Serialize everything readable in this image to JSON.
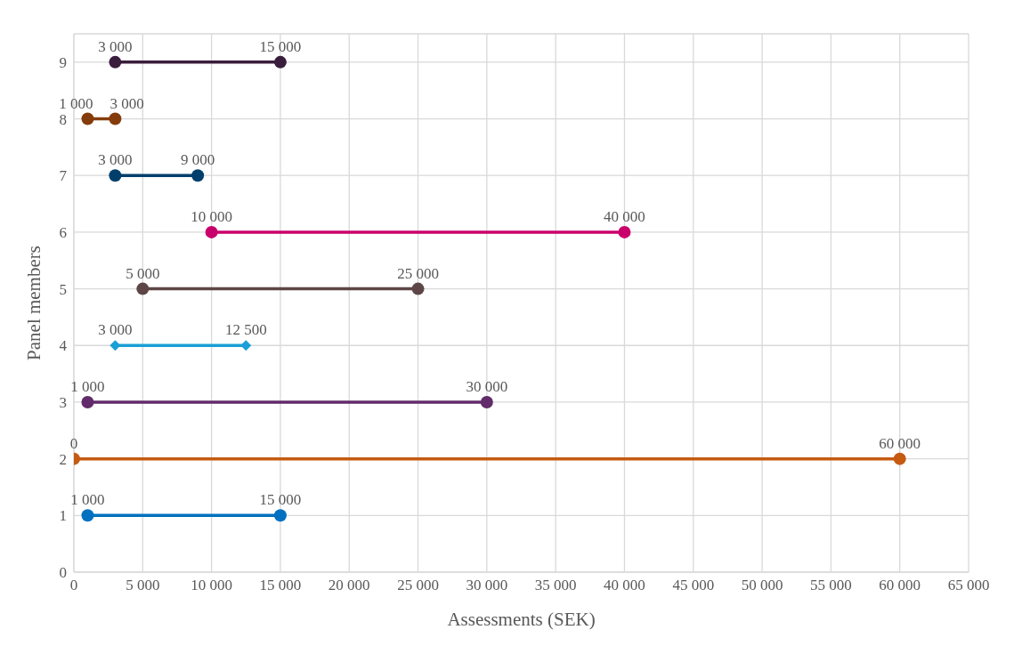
{
  "chart_data": {
    "type": "line",
    "orientation": "horizontal",
    "xlabel": "Assessments (SEK)",
    "ylabel": "Panel members",
    "xlim": [
      0,
      65000
    ],
    "xticks": [
      0,
      {
        "value": 5000,
        "label": "5 000"
      },
      {
        "value": 10000,
        "label": "10 000"
      },
      {
        "value": 15000,
        "label": "15 000"
      },
      {
        "value": 20000,
        "label": "20 000"
      },
      {
        "value": 25000,
        "label": "25 000"
      },
      {
        "value": 30000,
        "label": "30 000"
      },
      {
        "value": 35000,
        "label": "35 000"
      },
      {
        "value": 40000,
        "label": "40 000"
      },
      {
        "value": 45000,
        "label": "45 000"
      },
      {
        "value": 50000,
        "label": "50 000"
      },
      {
        "value": 55000,
        "label": "55 000"
      },
      {
        "value": 60000,
        "label": "60 000"
      },
      {
        "value": 65000,
        "label": "65 000"
      }
    ],
    "ylim": [
      0,
      9.5
    ],
    "yticks": [
      0,
      1,
      2,
      3,
      4,
      5,
      6,
      7,
      8,
      9
    ],
    "grid": true,
    "marker": "circle",
    "line_style": "solid",
    "series": [
      {
        "color": "#0070c0",
        "x": [
          1,
          1
        ],
        "values": [
          1000,
          15000
        ],
        "value_labels": [
          "1 000",
          "15 000"
        ]
      },
      {
        "color": "#c55a11",
        "x": [
          2,
          2
        ],
        "values": [
          0,
          60000
        ],
        "value_labels": [
          "0",
          "60 000"
        ]
      },
      {
        "color": "#622b6a",
        "x": [
          3,
          3
        ],
        "values": [
          1000,
          30000
        ],
        "value_labels": [
          "1 000",
          "30 000"
        ]
      },
      {
        "color": "#1a9fd6",
        "x": [
          4,
          4
        ],
        "values": [
          3000,
          12500
        ],
        "value_labels": [
          "3 000",
          "12 500"
        ],
        "marker": "diamond"
      },
      {
        "color": "#5e4646",
        "x": [
          5,
          5
        ],
        "values": [
          5000,
          25000
        ],
        "value_labels": [
          "5 000",
          "25 000"
        ]
      },
      {
        "color": "#c9006b",
        "x": [
          6,
          6
        ],
        "values": [
          10000,
          40000
        ],
        "value_labels": [
          "10 000",
          "40 000"
        ]
      },
      {
        "color": "#003f6b",
        "x": [
          7,
          7
        ],
        "values": [
          3000,
          9000
        ],
        "value_labels": [
          "3 000",
          "9 000"
        ]
      },
      {
        "color": "#843c0c",
        "x": [
          8,
          8
        ],
        "values": [
          1000,
          3000
        ],
        "value_labels": [
          "1 000",
          "3 000"
        ]
      },
      {
        "color": "#3a1d3d",
        "x": [
          9,
          9
        ],
        "values": [
          3000,
          15000
        ],
        "value_labels": [
          "3 000",
          "15 000"
        ]
      }
    ]
  }
}
